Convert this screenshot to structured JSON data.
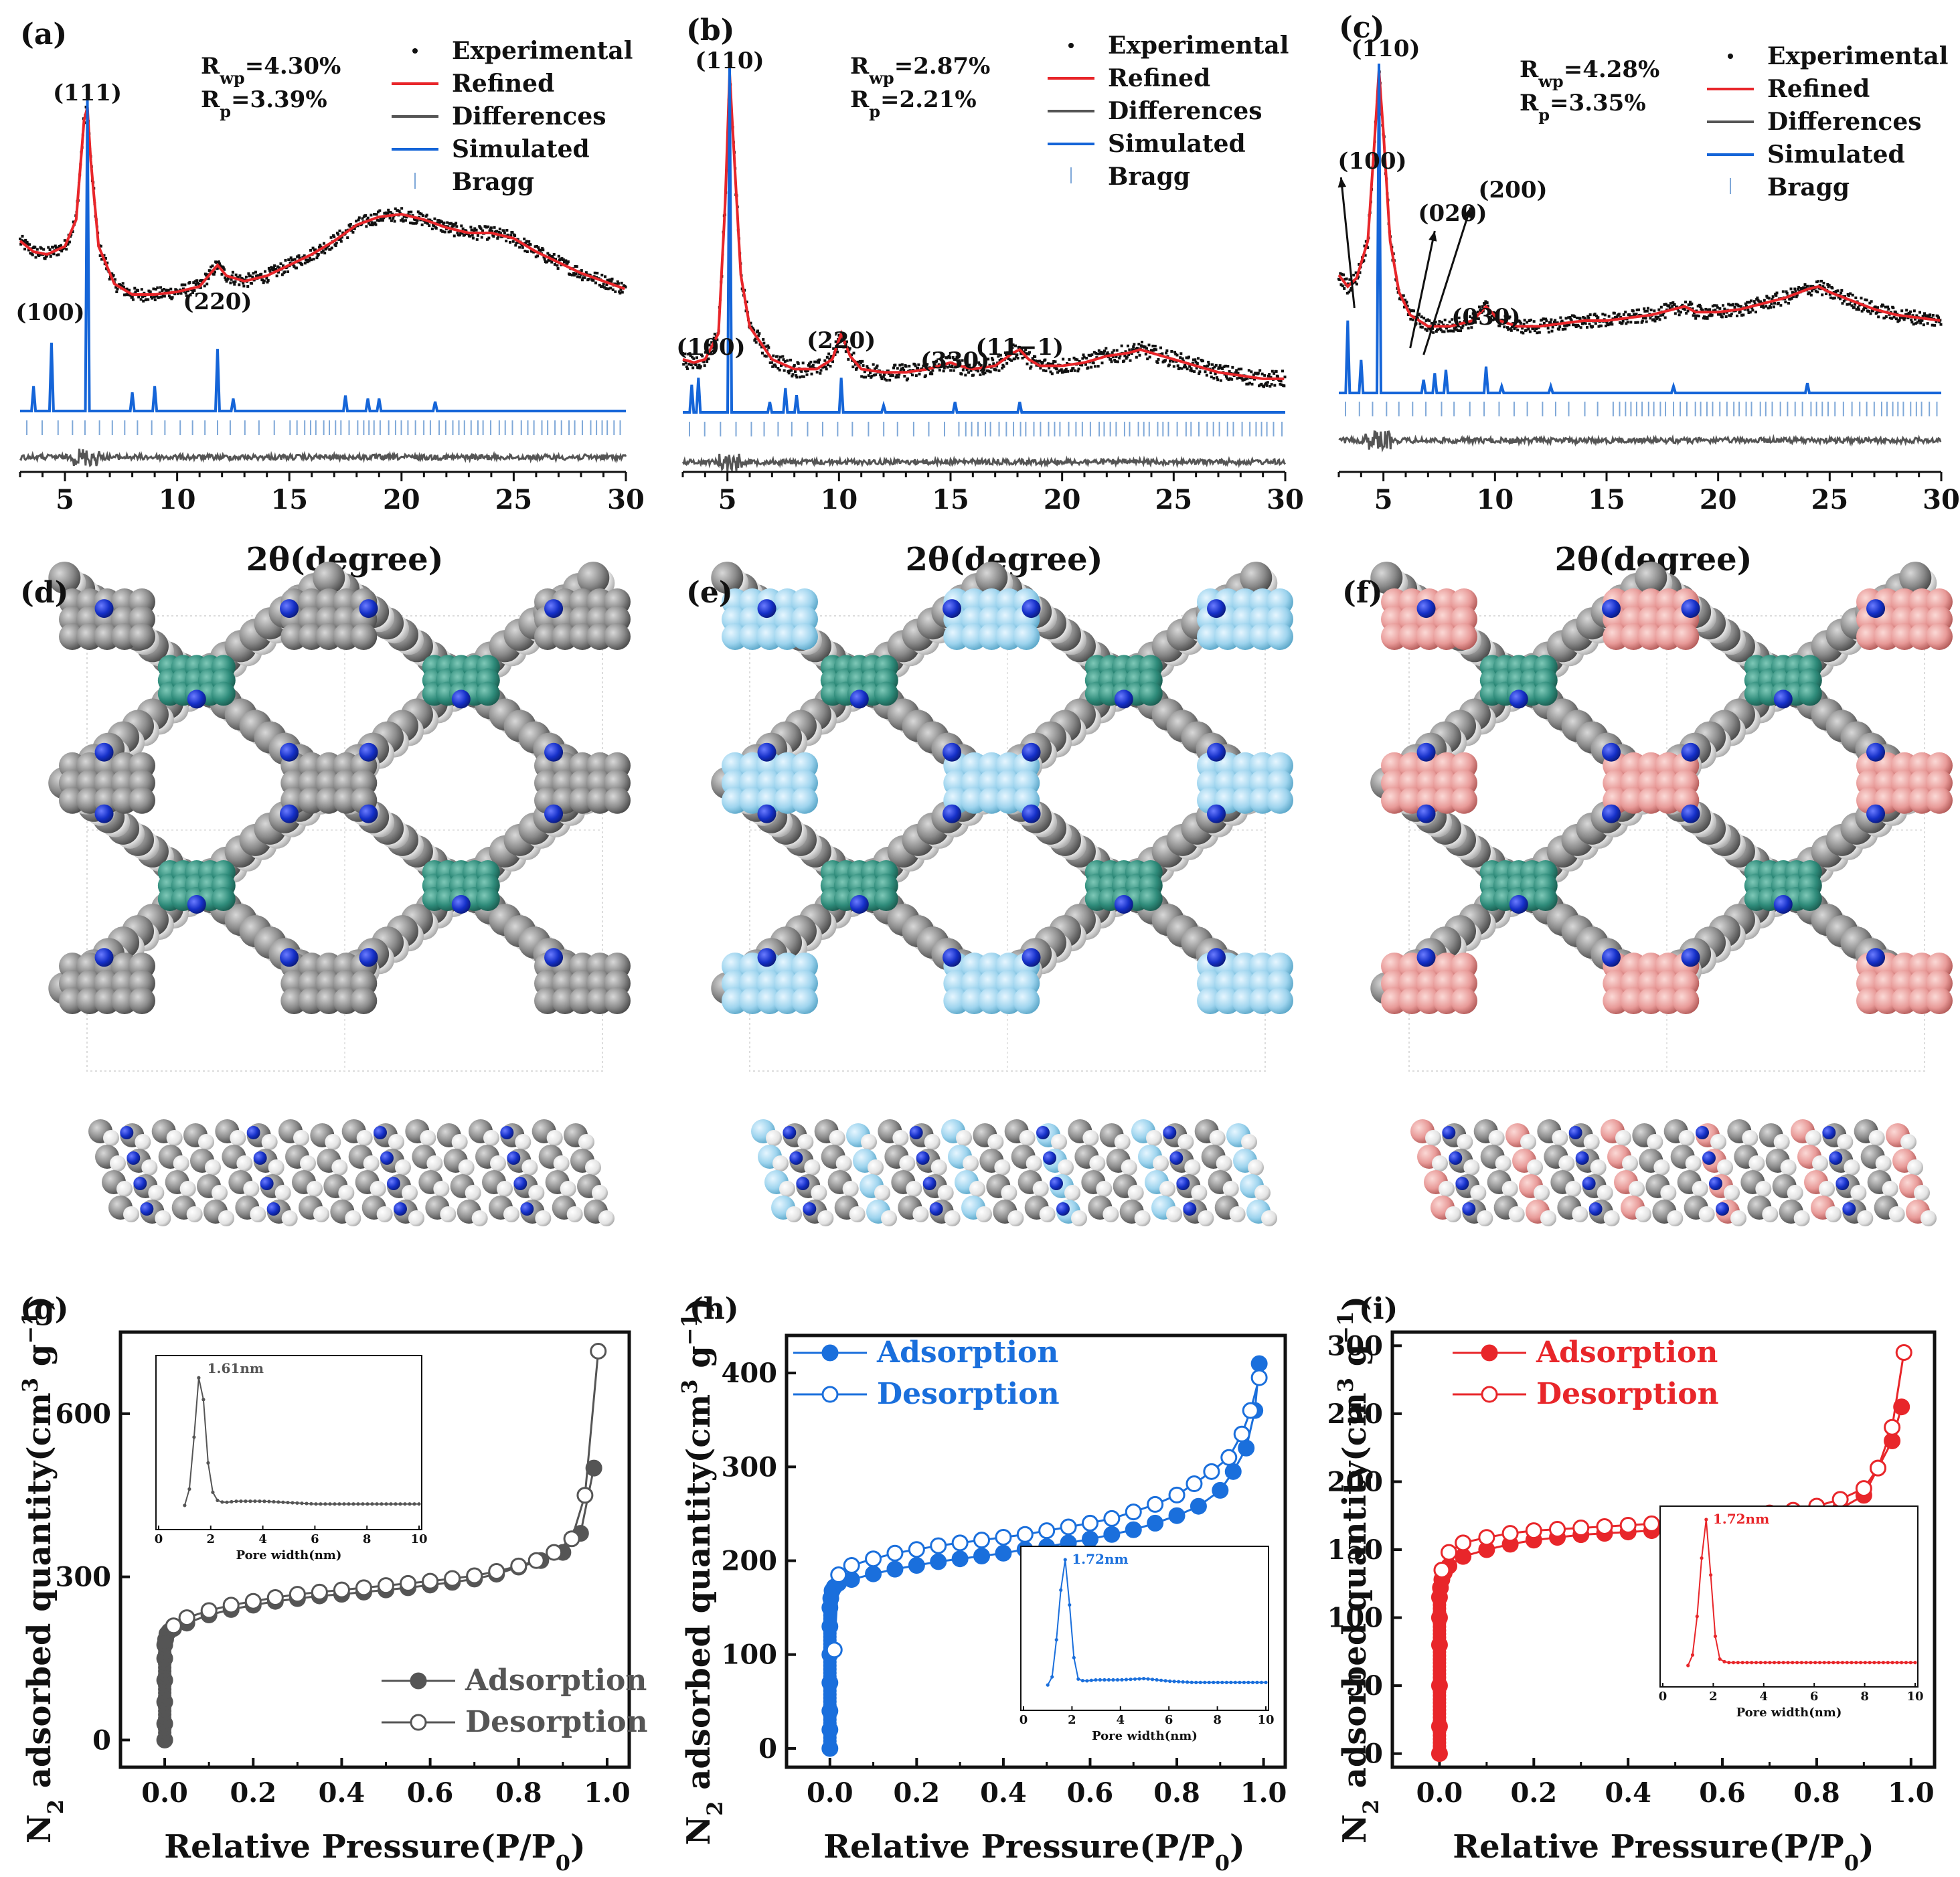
{
  "figure": {
    "xrd_axis_title": "2θ(degree)",
    "bet_axis_title_x": "Relative Pressure(P/P0)",
    "bet_axis_title_y": "N2 adsorbed quantity(cm3 g−1)"
  },
  "colors": {
    "experimental": "#111111",
    "refined": "#e8262a",
    "differences": "#555555",
    "simulated": "#1565d8",
    "bragg": "#7fa8d8",
    "gray_series": "#555555",
    "blue_series": "#1a6fdc",
    "red_series": "#e8262a",
    "model_gray": "#8c8c8c",
    "model_white": "#e6e6e6",
    "model_teal": "#2e8b7a",
    "model_blue_n": "#1530c8",
    "model_lightblue": "#9ed4ee",
    "model_pink": "#e89a98"
  },
  "chart_data": [
    {
      "panel": "(a)",
      "type": "line",
      "title": "",
      "xlabel": "2θ(degree)",
      "ylabel": "",
      "xlim": [
        3,
        30
      ],
      "xticks": [
        5,
        10,
        15,
        20,
        25,
        30
      ],
      "rwp": "Rwp=4.30%",
      "rp": "Rp=3.39%",
      "legend": [
        "Experimental",
        "Refined",
        "Differences",
        "Simulated",
        "Bragg"
      ],
      "peak_labels": [
        {
          "text": "(100)",
          "x": 4.4
        },
        {
          "text": "(111)",
          "x": 6.0
        },
        {
          "text": "(220)",
          "x": 11.8
        }
      ],
      "refined": {
        "x": [
          3,
          3.6,
          4.2,
          5.0,
          5.5,
          5.85,
          6.0,
          6.15,
          6.5,
          7.2,
          8,
          9,
          10,
          11,
          11.5,
          11.8,
          12.2,
          13,
          14,
          15,
          16,
          17,
          18,
          19,
          20,
          21,
          22,
          23,
          24,
          25,
          26,
          27,
          28,
          29,
          30
        ],
        "values": [
          0.5,
          0.46,
          0.45,
          0.48,
          0.58,
          0.95,
          1.0,
          0.8,
          0.48,
          0.34,
          0.3,
          0.3,
          0.31,
          0.33,
          0.38,
          0.41,
          0.37,
          0.35,
          0.37,
          0.41,
          0.45,
          0.5,
          0.56,
          0.59,
          0.6,
          0.58,
          0.55,
          0.53,
          0.53,
          0.51,
          0.46,
          0.42,
          0.38,
          0.35,
          0.32
        ]
      },
      "simulated": {
        "peaks": [
          [
            3.6,
            0.08
          ],
          [
            4.4,
            0.22
          ],
          [
            6.0,
            1.0
          ],
          [
            8.0,
            0.06
          ],
          [
            9.0,
            0.08
          ],
          [
            11.8,
            0.2
          ],
          [
            12.5,
            0.04
          ],
          [
            17.5,
            0.05
          ],
          [
            18.5,
            0.04
          ],
          [
            19.0,
            0.04
          ],
          [
            21.5,
            0.03
          ]
        ]
      },
      "bragg_range": [
        3.3,
        30
      ]
    },
    {
      "panel": "(b)",
      "type": "line",
      "title": "",
      "xlabel": "2θ(degree)",
      "ylabel": "",
      "xlim": [
        3,
        30
      ],
      "xticks": [
        5,
        10,
        15,
        20,
        25,
        30
      ],
      "rwp": "Rwp=2.87%",
      "rp": "Rp=2.21%",
      "legend": [
        "Experimental",
        "Refined",
        "Differences",
        "Simulated",
        "Bragg"
      ],
      "peak_labels": [
        {
          "text": "(100)",
          "x": 3.6
        },
        {
          "text": "(110)",
          "x": 5.1
        },
        {
          "text": "(220)",
          "x": 10.1
        },
        {
          "text": "(330)",
          "x": 15.2
        },
        {
          "text": "(11−1)",
          "x": 18.1
        }
      ],
      "refined": {
        "x": [
          3,
          3.5,
          4,
          4.6,
          4.9,
          5.1,
          5.3,
          5.6,
          6,
          7,
          8,
          9,
          9.7,
          10.1,
          10.5,
          11,
          12,
          13,
          14,
          15,
          15.4,
          16,
          17,
          17.8,
          18.1,
          18.5,
          19,
          20,
          21,
          22,
          23,
          23.5,
          24,
          25,
          26,
          27,
          28,
          29,
          30
        ],
        "values": [
          0.12,
          0.11,
          0.12,
          0.2,
          0.6,
          1.0,
          0.75,
          0.38,
          0.22,
          0.12,
          0.09,
          0.09,
          0.12,
          0.2,
          0.13,
          0.09,
          0.08,
          0.08,
          0.09,
          0.11,
          0.1,
          0.09,
          0.1,
          0.14,
          0.15,
          0.12,
          0.1,
          0.1,
          0.11,
          0.13,
          0.14,
          0.15,
          0.14,
          0.12,
          0.1,
          0.08,
          0.07,
          0.06,
          0.06
        ]
      },
      "simulated": {
        "peaks": [
          [
            3.4,
            0.08
          ],
          [
            3.7,
            0.1
          ],
          [
            5.1,
            1.0
          ],
          [
            6.9,
            0.03
          ],
          [
            7.6,
            0.07
          ],
          [
            8.1,
            0.05
          ],
          [
            10.1,
            0.1
          ],
          [
            12.0,
            0.02
          ],
          [
            15.2,
            0.03
          ],
          [
            18.1,
            0.03
          ]
        ]
      },
      "bragg_range": [
        3.3,
        30
      ]
    },
    {
      "panel": "(c)",
      "type": "line",
      "title": "",
      "xlabel": "2θ(degree)",
      "ylabel": "",
      "xlim": [
        3,
        30
      ],
      "xticks": [
        5,
        10,
        15,
        20,
        25,
        30
      ],
      "rwp": "Rwp=4.28%",
      "rp": "Rp=3.35%",
      "legend": [
        "Experimental",
        "Refined",
        "Differences",
        "Simulated",
        "Bragg"
      ],
      "peak_labels": [
        {
          "text": "(100)",
          "x": 3.4
        },
        {
          "text": "(110)",
          "x": 4.8
        },
        {
          "text": "(020)",
          "x": 6.9
        },
        {
          "text": "(200)",
          "x": 7.5
        },
        {
          "text": "(030)",
          "x": 9.6
        }
      ],
      "refined": {
        "x": [
          3,
          3.4,
          3.8,
          4.3,
          4.6,
          4.8,
          5.0,
          5.3,
          5.7,
          6.2,
          7,
          8,
          9,
          9.6,
          10.2,
          11,
          12,
          13,
          14,
          15,
          16,
          17,
          18,
          18.5,
          19,
          20,
          21,
          22,
          23,
          24,
          24.5,
          25,
          26,
          27,
          28,
          29,
          30
        ],
        "values": [
          0.28,
          0.24,
          0.27,
          0.4,
          0.75,
          1.0,
          0.78,
          0.4,
          0.22,
          0.14,
          0.1,
          0.1,
          0.12,
          0.17,
          0.12,
          0.1,
          0.1,
          0.11,
          0.12,
          0.12,
          0.13,
          0.14,
          0.16,
          0.17,
          0.15,
          0.15,
          0.16,
          0.18,
          0.2,
          0.23,
          0.24,
          0.22,
          0.19,
          0.16,
          0.14,
          0.13,
          0.12
        ]
      },
      "simulated": {
        "peaks": [
          [
            3.4,
            0.22
          ],
          [
            4.0,
            0.1
          ],
          [
            4.8,
            1.0
          ],
          [
            6.8,
            0.04
          ],
          [
            7.3,
            0.06
          ],
          [
            7.8,
            0.07
          ],
          [
            9.6,
            0.08
          ],
          [
            10.3,
            0.02
          ],
          [
            12.5,
            0.02
          ],
          [
            18.0,
            0.02
          ],
          [
            24.0,
            0.03
          ]
        ]
      },
      "bragg_range": [
        3.3,
        30
      ]
    },
    {
      "panel": "(g)",
      "type": "line",
      "title": "",
      "xlabel": "Relative Pressure(P/P0)",
      "ylabel": "N2 adsorbed quantity(cm3 g−1)",
      "xlim": [
        -0.1,
        1.05
      ],
      "ylim": [
        -50,
        750
      ],
      "xticks": [
        0.0,
        0.2,
        0.4,
        0.6,
        0.8,
        1.0
      ],
      "xtick_labels": [
        "0.0",
        "0.2",
        "0.4",
        "0.6",
        "0.8",
        "1.0"
      ],
      "yticks": [
        0,
        300,
        600
      ],
      "series": [
        {
          "name": "Adsorption",
          "x": [
            0.0,
            0.0,
            0.0,
            0.0,
            0.0,
            0.0,
            0.002,
            0.005,
            0.01,
            0.02,
            0.05,
            0.1,
            0.15,
            0.2,
            0.25,
            0.3,
            0.35,
            0.4,
            0.45,
            0.5,
            0.55,
            0.6,
            0.65,
            0.7,
            0.75,
            0.8,
            0.85,
            0.9,
            0.94,
            0.97
          ],
          "values": [
            0,
            30,
            70,
            110,
            150,
            175,
            185,
            195,
            200,
            205,
            215,
            230,
            240,
            248,
            255,
            260,
            265,
            268,
            272,
            276,
            280,
            285,
            290,
            296,
            305,
            318,
            330,
            345,
            380,
            500
          ]
        },
        {
          "name": "Desorption",
          "x": [
            0.98,
            0.95,
            0.92,
            0.88,
            0.84,
            0.8,
            0.75,
            0.7,
            0.65,
            0.6,
            0.55,
            0.5,
            0.45,
            0.4,
            0.35,
            0.3,
            0.25,
            0.2,
            0.15,
            0.1,
            0.05,
            0.02
          ],
          "values": [
            715,
            450,
            370,
            345,
            330,
            320,
            310,
            302,
            297,
            292,
            288,
            284,
            280,
            276,
            272,
            268,
            262,
            255,
            248,
            238,
            225,
            210
          ]
        }
      ],
      "inset": {
        "xlabel": "Pore width(nm)",
        "peak_label": "1.61nm",
        "xlim": [
          0,
          10
        ],
        "xticks": [
          0,
          2,
          4,
          6,
          8,
          10
        ],
        "x": [
          1.0,
          1.2,
          1.4,
          1.5,
          1.61,
          1.7,
          1.8,
          2.0,
          2.2,
          2.5,
          3,
          4,
          5,
          6,
          7,
          8,
          9,
          10
        ],
        "values": [
          0.02,
          0.15,
          0.6,
          0.9,
          1.0,
          0.85,
          0.5,
          0.15,
          0.06,
          0.04,
          0.05,
          0.05,
          0.04,
          0.03,
          0.03,
          0.03,
          0.03,
          0.03
        ]
      }
    },
    {
      "panel": "(h)",
      "type": "line",
      "title": "",
      "xlabel": "Relative Pressure(P/P0)",
      "ylabel": "N2 adsorbed quantity(cm3 g−1)",
      "xlim": [
        -0.1,
        1.05
      ],
      "ylim": [
        -20,
        440
      ],
      "xticks": [
        0.0,
        0.2,
        0.4,
        0.6,
        0.8,
        1.0
      ],
      "xtick_labels": [
        "0.0",
        "0.2",
        "0.4",
        "0.6",
        "0.8",
        "1.0"
      ],
      "yticks": [
        0,
        100,
        200,
        300,
        400
      ],
      "series": [
        {
          "name": "Adsorption",
          "x": [
            0.0,
            0.0,
            0.0,
            0.0,
            0.0,
            0.0,
            0.0,
            0.002,
            0.005,
            0.01,
            0.02,
            0.05,
            0.1,
            0.15,
            0.2,
            0.25,
            0.3,
            0.35,
            0.4,
            0.45,
            0.5,
            0.55,
            0.6,
            0.65,
            0.7,
            0.75,
            0.8,
            0.85,
            0.9,
            0.93,
            0.96,
            0.98,
            0.99
          ],
          "values": [
            0,
            20,
            40,
            70,
            100,
            130,
            150,
            160,
            168,
            172,
            176,
            180,
            186,
            191,
            195,
            199,
            202,
            205,
            208,
            212,
            215,
            219,
            223,
            228,
            233,
            240,
            248,
            258,
            275,
            295,
            320,
            360,
            410
          ]
        },
        {
          "name": "Desorption",
          "x": [
            0.99,
            0.97,
            0.95,
            0.92,
            0.88,
            0.84,
            0.8,
            0.75,
            0.7,
            0.65,
            0.6,
            0.55,
            0.5,
            0.45,
            0.4,
            0.35,
            0.3,
            0.25,
            0.2,
            0.15,
            0.1,
            0.05,
            0.02,
            0.01
          ],
          "values": [
            395,
            360,
            335,
            310,
            295,
            282,
            270,
            260,
            252,
            245,
            240,
            236,
            232,
            228,
            225,
            222,
            219,
            216,
            212,
            208,
            202,
            195,
            185,
            105
          ]
        }
      ],
      "inset": {
        "xlabel": "Pore width(nm)",
        "peak_label": "1.72nm",
        "xlim": [
          0,
          10
        ],
        "xticks": [
          0,
          2,
          4,
          6,
          8,
          10
        ],
        "x": [
          1.0,
          1.2,
          1.4,
          1.6,
          1.72,
          1.85,
          2.0,
          2.2,
          2.5,
          3,
          4,
          5,
          6,
          7,
          8,
          9,
          10
        ],
        "values": [
          0.03,
          0.1,
          0.45,
          0.9,
          1.0,
          0.8,
          0.35,
          0.08,
          0.06,
          0.07,
          0.07,
          0.08,
          0.06,
          0.05,
          0.05,
          0.05,
          0.05
        ]
      }
    },
    {
      "panel": "(i)",
      "type": "line",
      "title": "",
      "xlabel": "Relative Pressure(P/P0)",
      "ylabel": "N2 adsorbed quantity(cm3 g−1)",
      "xlim": [
        -0.1,
        1.05
      ],
      "ylim": [
        -10,
        310
      ],
      "xticks": [
        0.0,
        0.2,
        0.4,
        0.6,
        0.8,
        1.0
      ],
      "xtick_labels": [
        "0.0",
        "0.2",
        "0.4",
        "0.6",
        "0.8",
        "1.0"
      ],
      "yticks": [
        0,
        50,
        100,
        150,
        200,
        250,
        300
      ],
      "series": [
        {
          "name": "Adsorption",
          "x": [
            0.0,
            0.0,
            0.0,
            0.0,
            0.0,
            0.0,
            0.002,
            0.005,
            0.01,
            0.02,
            0.05,
            0.1,
            0.15,
            0.2,
            0.25,
            0.3,
            0.35,
            0.4,
            0.45,
            0.5,
            0.55,
            0.6,
            0.65,
            0.7,
            0.75,
            0.8,
            0.85,
            0.9,
            0.93,
            0.96,
            0.98
          ],
          "values": [
            0,
            20,
            50,
            80,
            100,
            115,
            122,
            128,
            133,
            138,
            145,
            150,
            154,
            157,
            159,
            161,
            162,
            163,
            164,
            165,
            166,
            167,
            168,
            170,
            172,
            175,
            180,
            190,
            210,
            230,
            255
          ]
        },
        {
          "name": "Desorption",
          "x": [
            0.985,
            0.96,
            0.93,
            0.9,
            0.85,
            0.8,
            0.75,
            0.7,
            0.65,
            0.6,
            0.55,
            0.5,
            0.45,
            0.4,
            0.35,
            0.3,
            0.25,
            0.2,
            0.15,
            0.1,
            0.05,
            0.02,
            0.005
          ],
          "values": [
            295,
            240,
            210,
            195,
            187,
            182,
            179,
            177,
            175,
            173,
            172,
            170,
            169,
            168,
            167,
            166,
            165,
            164,
            162,
            159,
            155,
            148,
            135
          ]
        }
      ],
      "inset": {
        "xlabel": "Pore width(nm)",
        "peak_label": "1.72nm",
        "xlim": [
          0,
          10
        ],
        "xticks": [
          0,
          2,
          4,
          6,
          8,
          10
        ],
        "x": [
          1.0,
          1.2,
          1.4,
          1.6,
          1.72,
          1.85,
          2.0,
          2.2,
          2.5,
          3,
          4,
          5,
          6,
          7,
          8,
          9,
          10
        ],
        "values": [
          0.0,
          0.08,
          0.4,
          0.88,
          1.0,
          0.78,
          0.3,
          0.05,
          0.02,
          0.02,
          0.02,
          0.02,
          0.02,
          0.02,
          0.02,
          0.02,
          0.02
        ]
      }
    }
  ],
  "panel_labels": {
    "a": "(a)",
    "b": "(b)",
    "c": "(c)",
    "d": "(d)",
    "e": "(e)",
    "f": "(f)",
    "g": "(g)",
    "h": "(h)",
    "i": "(i)"
  },
  "models": {
    "d": "gray COF framework",
    "e": "gray COF framework with light-blue linkers",
    "f": "gray COF framework with pink linkers"
  }
}
